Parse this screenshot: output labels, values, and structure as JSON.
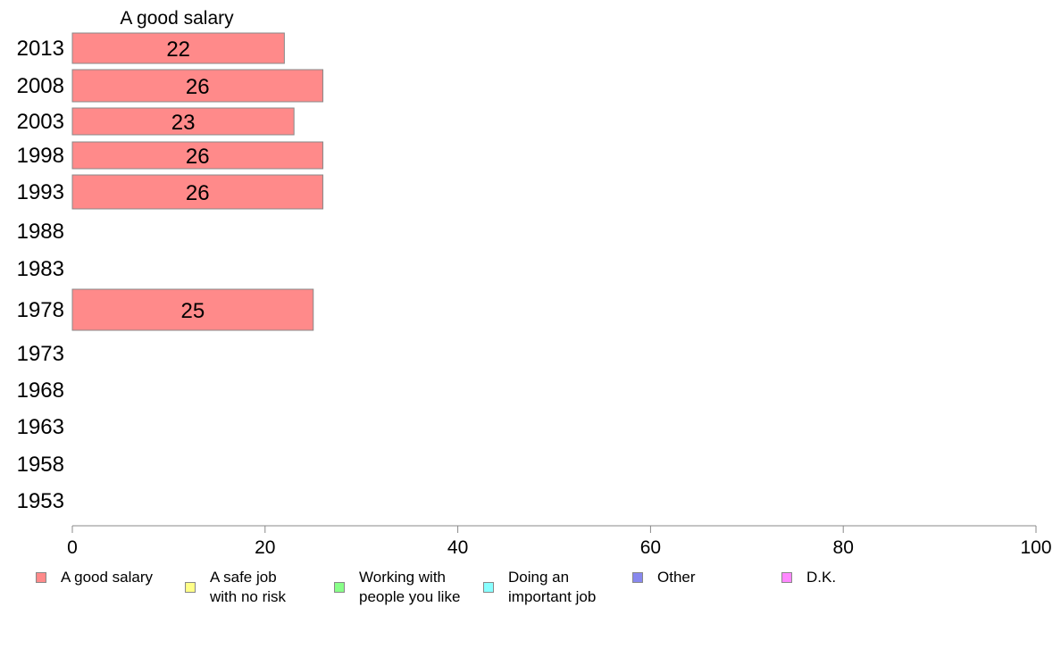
{
  "chart_data": {
    "type": "bar",
    "orientation": "horizontal",
    "title": "A good salary",
    "categories": [
      "2013",
      "2008",
      "2003",
      "1998",
      "1993",
      "1988",
      "1983",
      "1978",
      "1973",
      "1968",
      "1963",
      "1958",
      "1953"
    ],
    "series": [
      {
        "name": "A good salary",
        "values": [
          22,
          26,
          23,
          26,
          26,
          null,
          null,
          25,
          null,
          null,
          null,
          null,
          null
        ]
      }
    ],
    "data_labels": [
      "22",
      "26",
      "23",
      "26",
      "26",
      "",
      "",
      "25",
      "",
      "",
      "",
      "",
      ""
    ],
    "xlim": [
      0,
      100
    ],
    "xticks": [
      0,
      20,
      40,
      60,
      80,
      100
    ],
    "grid": false,
    "legend_position": "bottom"
  },
  "legend": [
    {
      "label": "A good salary",
      "color": "#ff8a8a"
    },
    {
      "label": "A safe job\nwith no risk",
      "color": "#ffff88"
    },
    {
      "label": "Working with\npeople you like",
      "color": "#88ff88"
    },
    {
      "label": "Doing an\nimportant job",
      "color": "#88ffff"
    },
    {
      "label": "Other",
      "color": "#8888ee"
    },
    {
      "label": "D.K.",
      "color": "#ff88ff"
    }
  ]
}
